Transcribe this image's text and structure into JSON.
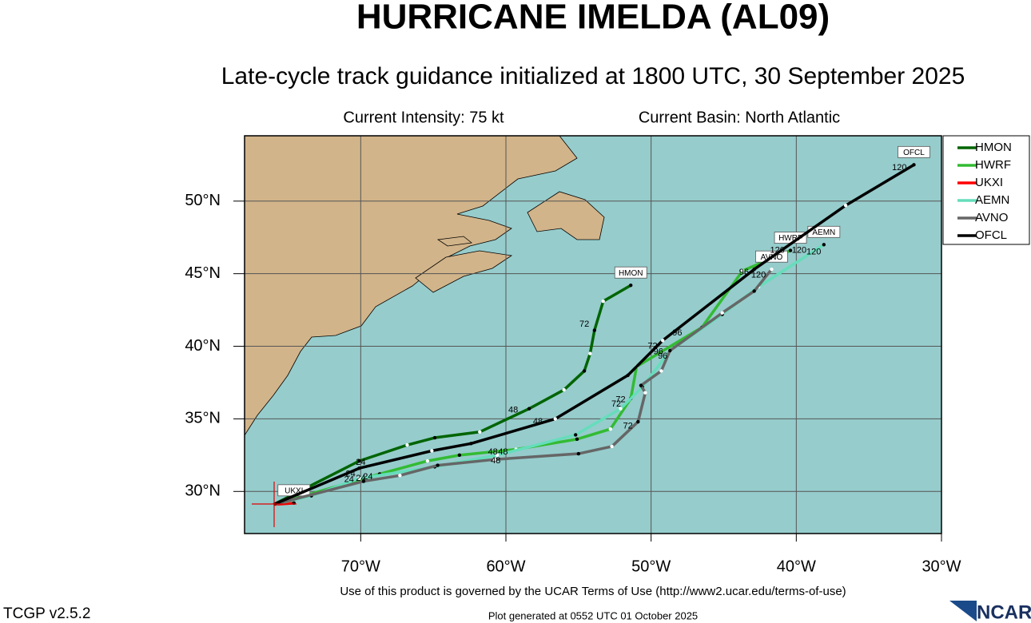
{
  "chart_data": {
    "type": "track",
    "title": "HURRICANE IMELDA (AL09)",
    "subtitle": "Late-cycle track guidance initialized at 1800 UTC, 30 September 2025",
    "info": [
      "Current Intensity: 75 kt",
      "Current Basin: North Atlantic"
    ],
    "xlim": [
      -78,
      -30
    ],
    "ylim": [
      27.1,
      54.5
    ],
    "xticks": [
      {
        "value": -70,
        "label": "70°W"
      },
      {
        "value": -60,
        "label": "60°W"
      },
      {
        "value": -50,
        "label": "50°W"
      },
      {
        "value": -40,
        "label": "40°W"
      },
      {
        "value": -30,
        "label": "30°W"
      }
    ],
    "yticks": [
      {
        "value": 30,
        "label": "30°N"
      },
      {
        "value": 35,
        "label": "35°N"
      },
      {
        "value": 40,
        "label": "40°N"
      },
      {
        "value": 45,
        "label": "45°N"
      },
      {
        "value": 50,
        "label": "50°N"
      }
    ],
    "grid": true,
    "legend": "right",
    "series": [
      {
        "name": "HMON",
        "color": "#006400",
        "lon": [
          -76.0,
          -70.1,
          -66.8,
          -64.9,
          -61.8,
          -58.4,
          -56.0,
          -54.6,
          -54.2,
          -53.9,
          -53.3,
          -51.4
        ],
        "lat": [
          29.1,
          32.1,
          33.2,
          33.7,
          34.1,
          35.7,
          37.0,
          38.3,
          39.5,
          41.1,
          43.1,
          44.2
        ]
      },
      {
        "name": "HWRF",
        "color": "#33bb33",
        "lon": [
          -76.0,
          -68.7,
          -65.4,
          -63.2,
          -59.3,
          -55.1,
          -52.8,
          -51.4,
          -51.0,
          -46.5,
          -43.7,
          -40.4
        ],
        "lat": [
          29.1,
          31.2,
          32.1,
          32.5,
          32.9,
          33.6,
          34.3,
          36.4,
          38.6,
          41.3,
          45.2,
          46.6
        ]
      },
      {
        "name": "UKXI",
        "color": "#ff0000",
        "lon": [
          -76.0,
          -74.6
        ],
        "lat": [
          29.1,
          29.2
        ]
      },
      {
        "name": "AEMN",
        "color": "#66ddbb",
        "lon": [
          -76.0,
          -73.4,
          -70.1,
          -64.9,
          -60.6,
          -55.2,
          -52.1,
          -50.6,
          -48.7,
          -45.1,
          -42.6,
          -38.1
        ],
        "lat": [
          29.1,
          29.7,
          30.9,
          31.7,
          32.5,
          33.9,
          35.7,
          37.2,
          39.7,
          42.2,
          44.1,
          47.0
        ]
      },
      {
        "name": "AVNO",
        "color": "#666666",
        "lon": [
          -76.0,
          -69.8,
          -67.3,
          -64.7,
          -60.8,
          -55.0,
          -52.7,
          -50.9,
          -50.4,
          -50.7,
          -49.3,
          -48.7,
          -45.1,
          -42.9,
          -41.7
        ],
        "lat": [
          29.1,
          30.7,
          31.1,
          31.8,
          32.2,
          32.6,
          33.1,
          34.8,
          36.8,
          37.3,
          38.3,
          39.7,
          42.3,
          43.8,
          45.3
        ]
      },
      {
        "name": "OFCL",
        "color": "#000000",
        "lon": [
          -76.0,
          -70.1,
          -65.1,
          -62.4,
          -56.6,
          -51.6,
          -49.2,
          -42.9,
          -36.6,
          -31.9
        ],
        "lat": [
          29.1,
          31.6,
          32.8,
          33.3,
          35.0,
          38.0,
          40.4,
          45.3,
          49.7,
          52.5
        ]
      }
    ],
    "hour_labels": [
      {
        "text": "24",
        "lon": -70.0,
        "lat": 32.0
      },
      {
        "text": "24",
        "lon": -70.7,
        "lat": 31.2
      },
      {
        "text": "24",
        "lon": -70.8,
        "lat": 30.8
      },
      {
        "text": "24",
        "lon": -70.0,
        "lat": 30.9
      },
      {
        "text": "24",
        "lon": -69.5,
        "lat": 31.0
      },
      {
        "text": "48",
        "lon": -59.5,
        "lat": 35.6
      },
      {
        "text": "48",
        "lon": -57.8,
        "lat": 34.8
      },
      {
        "text": "48",
        "lon": -60.9,
        "lat": 32.7
      },
      {
        "text": "48",
        "lon": -60.2,
        "lat": 32.7
      },
      {
        "text": "48",
        "lon": -60.7,
        "lat": 32.1
      },
      {
        "text": "72",
        "lon": -54.6,
        "lat": 41.5
      },
      {
        "text": "72",
        "lon": -52.1,
        "lat": 36.3
      },
      {
        "text": "72",
        "lon": -52.4,
        "lat": 36.0
      },
      {
        "text": "72",
        "lon": -51.6,
        "lat": 34.5
      },
      {
        "text": "72",
        "lon": -49.9,
        "lat": 40.0
      },
      {
        "text": "96",
        "lon": -48.2,
        "lat": 40.9
      },
      {
        "text": "96",
        "lon": -49.5,
        "lat": 39.6
      },
      {
        "text": "96",
        "lon": -49.2,
        "lat": 39.3
      },
      {
        "text": "96",
        "lon": -43.6,
        "lat": 45.1
      },
      {
        "text": "120",
        "lon": -32.9,
        "lat": 52.3
      },
      {
        "text": "120",
        "lon": -39.8,
        "lat": 46.6
      },
      {
        "text": "120",
        "lon": -41.3,
        "lat": 46.6
      },
      {
        "text": "120",
        "lon": -38.8,
        "lat": 46.5
      },
      {
        "text": "120",
        "lon": -42.6,
        "lat": 44.9
      }
    ],
    "terms": "Use of this product is governed by the UCAR Terms of Use (http://www2.ucar.edu/terms-of-use)",
    "version": "TCGP v2.5.2",
    "generated": "Plot generated at 0552 UTC   01 October 2025",
    "logo": "NCAR"
  }
}
